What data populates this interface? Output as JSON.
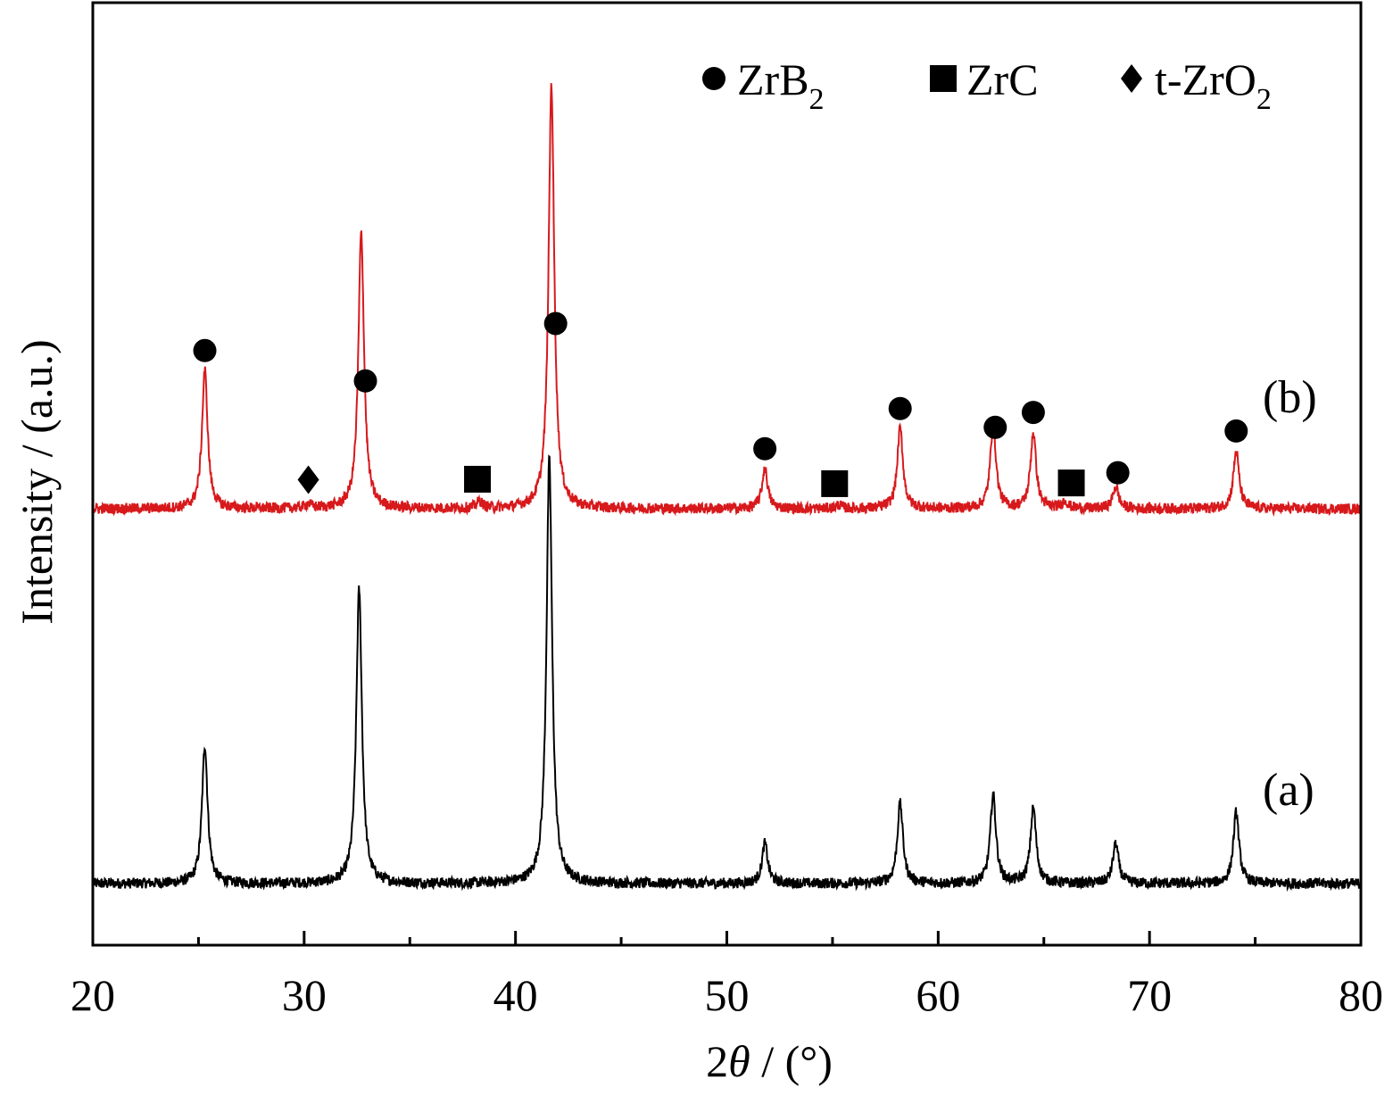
{
  "chart_data": {
    "type": "line",
    "xlabel": "2θ / (°)",
    "xlabel_parts": {
      "num": "2",
      "theta": "θ",
      "rest": " / (°)"
    },
    "ylabel": "Intensity / (a.u.)",
    "xlim": [
      20,
      80
    ],
    "xticks": [
      20,
      30,
      40,
      50,
      60,
      70,
      80
    ],
    "x_minor_step": 5,
    "yticks_shown": false,
    "grid": false,
    "legend_position": "top-right",
    "legend": [
      {
        "marker": "circle",
        "label": "ZrB",
        "sub": "2"
      },
      {
        "marker": "square",
        "label": "ZrC",
        "sub": ""
      },
      {
        "marker": "diamond",
        "label": "t-ZrO",
        "sub": "2"
      }
    ],
    "series": [
      {
        "name": "(a)",
        "color": "#000000",
        "baseline": 0.0,
        "peaks": [
          {
            "x": 25.3,
            "height": 0.155
          },
          {
            "x": 32.6,
            "height": 0.33
          },
          {
            "x": 41.6,
            "height": 0.475
          },
          {
            "x": 51.8,
            "height": 0.045
          },
          {
            "x": 58.2,
            "height": 0.09
          },
          {
            "x": 62.6,
            "height": 0.1
          },
          {
            "x": 64.5,
            "height": 0.085
          },
          {
            "x": 68.4,
            "height": 0.045
          },
          {
            "x": 74.1,
            "height": 0.08
          }
        ]
      },
      {
        "name": "(b)",
        "color": "#d7191c",
        "baseline": 0.42,
        "peaks": [
          {
            "x": 25.3,
            "height": 0.155,
            "phase": "ZrB2"
          },
          {
            "x": 30.2,
            "height": 0.005,
            "phase": "t-ZrO2"
          },
          {
            "x": 32.7,
            "height": 0.31,
            "phase": "ZrB2"
          },
          {
            "x": 38.3,
            "height": 0.008,
            "phase": "ZrC"
          },
          {
            "x": 41.7,
            "height": 0.475,
            "phase": "ZrB2"
          },
          {
            "x": 51.8,
            "height": 0.045,
            "phase": "ZrB2"
          },
          {
            "x": 55.3,
            "height": 0.004,
            "phase": "ZrC"
          },
          {
            "x": 58.2,
            "height": 0.09,
            "phase": "ZrB2"
          },
          {
            "x": 62.6,
            "height": 0.095,
            "phase": "ZrB2"
          },
          {
            "x": 64.5,
            "height": 0.085,
            "phase": "ZrB2"
          },
          {
            "x": 66.0,
            "height": 0.008,
            "phase": "ZrC"
          },
          {
            "x": 68.4,
            "height": 0.025,
            "phase": "ZrB2"
          },
          {
            "x": 74.1,
            "height": 0.065,
            "phase": "ZrB2"
          }
        ]
      }
    ],
    "annotations": [
      {
        "marker": "circle",
        "x": 25.3
      },
      {
        "marker": "diamond",
        "x": 30.2
      },
      {
        "marker": "circle",
        "x": 32.9
      },
      {
        "marker": "square",
        "x": 38.2
      },
      {
        "marker": "circle",
        "x": 41.9
      },
      {
        "marker": "circle",
        "x": 51.8
      },
      {
        "marker": "square",
        "x": 55.1
      },
      {
        "marker": "circle",
        "x": 58.2
      },
      {
        "marker": "circle",
        "x": 62.7
      },
      {
        "marker": "circle",
        "x": 64.5
      },
      {
        "marker": "square",
        "x": 66.3
      },
      {
        "marker": "circle",
        "x": 68.5
      },
      {
        "marker": "circle",
        "x": 74.1
      }
    ]
  }
}
